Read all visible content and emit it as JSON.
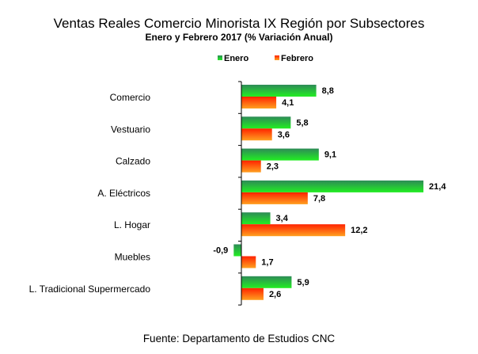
{
  "chart_data": {
    "type": "bar",
    "orientation": "horizontal",
    "title": "Ventas Reales Comercio Minorista IX Región por Subsectores",
    "subtitle": "Enero y Febrero 2017 (% Variación Anual)",
    "source": "Fuente: Departamento de Estudios CNC",
    "categories": [
      "Comercio",
      "Vestuario",
      "Calzado",
      "A. Eléctricos",
      "L. Hogar",
      "Muebles",
      "L. Tradicional Supermercado"
    ],
    "series": [
      {
        "name": "Enero",
        "values": [
          8.8,
          5.8,
          9.1,
          21.4,
          3.4,
          -0.9,
          5.9
        ],
        "labels": [
          "8,8",
          "5,8",
          "9,1",
          "21,4",
          "3,4",
          "-0,9",
          "5,9"
        ],
        "color_top": "#2e8b57",
        "color_bottom": "#22ee22"
      },
      {
        "name": "Febrero",
        "values": [
          4.1,
          3.6,
          2.3,
          7.8,
          12.2,
          1.7,
          2.6
        ],
        "labels": [
          "4,1",
          "3,6",
          "2,3",
          "7,8",
          "12,2",
          "1,7",
          "2,6"
        ],
        "color_top": "#ff2200",
        "color_bottom": "#ffa020"
      }
    ],
    "legend_position": "top",
    "grid": false,
    "xlim": [
      -0.9,
      21.4
    ]
  }
}
